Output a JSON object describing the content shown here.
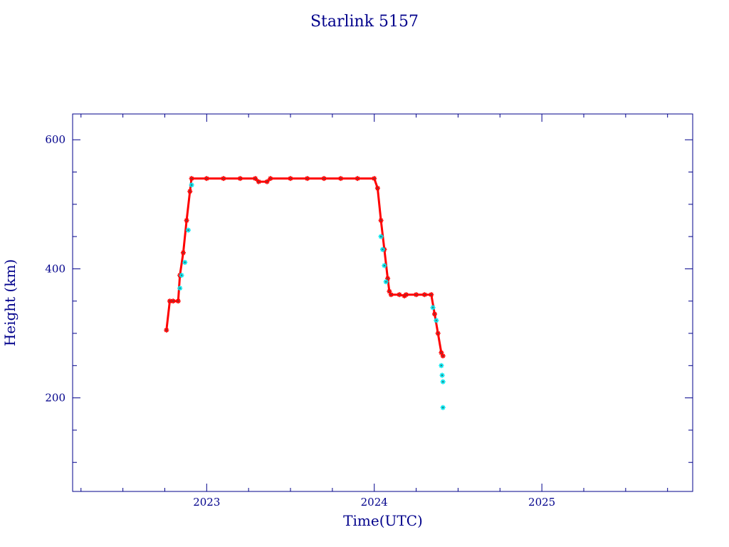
{
  "chart_data": {
    "type": "scatter",
    "title": "Starlink 5157",
    "xlabel": "Time(UTC)",
    "ylabel": "Height (km)",
    "xlim": [
      2022.2,
      2025.9
    ],
    "ylim": [
      55,
      640
    ],
    "x_ticks": [
      {
        "value": 2023,
        "label": "2023"
      },
      {
        "value": 2024,
        "label": "2024"
      },
      {
        "value": 2025,
        "label": "2025"
      }
    ],
    "y_ticks": [
      {
        "value": 200,
        "label": "200"
      },
      {
        "value": 400,
        "label": "400"
      },
      {
        "value": 600,
        "label": "600"
      }
    ],
    "grid": false,
    "legend": "none",
    "colors": {
      "frame": "#00008b",
      "text": "#00008b",
      "trace": "#ff0000",
      "highlight": "#00e5ee",
      "star_center": "#555555"
    },
    "series": [
      {
        "color": "#ff0000",
        "x": [
          2022.76,
          2022.78,
          2022.8,
          2022.83,
          2022.84,
          2022.86,
          2022.88,
          2022.9,
          2022.91,
          2023.0,
          2023.1,
          2023.2,
          2023.29,
          2023.31,
          2023.36,
          2023.38,
          2023.5,
          2023.6,
          2023.7,
          2023.8,
          2023.9,
          2024.0,
          2024.02,
          2024.04,
          2024.06,
          2024.08,
          2024.09,
          2024.1,
          2024.15,
          2024.18,
          2024.19,
          2024.25,
          2024.3,
          2024.34,
          2024.36,
          2024.38,
          2024.4,
          2024.41
        ],
        "values": [
          305,
          350,
          350,
          350,
          390,
          425,
          475,
          520,
          540,
          540,
          540,
          540,
          540,
          535,
          535,
          540,
          540,
          540,
          540,
          540,
          540,
          540,
          525,
          475,
          430,
          385,
          365,
          360,
          360,
          358,
          360,
          360,
          360,
          360,
          330,
          300,
          270,
          265
        ]
      },
      {
        "color": "#00e5ee",
        "x": [
          2022.84,
          2022.85,
          2022.87,
          2022.89,
          2022.91,
          2024.04,
          2024.05,
          2024.06,
          2024.07,
          2024.35,
          2024.37,
          2024.4,
          2024.405,
          2024.41,
          2024.41
        ],
        "values": [
          370,
          390,
          410,
          460,
          530,
          450,
          430,
          405,
          380,
          340,
          320,
          250,
          235,
          225,
          185
        ]
      }
    ]
  }
}
